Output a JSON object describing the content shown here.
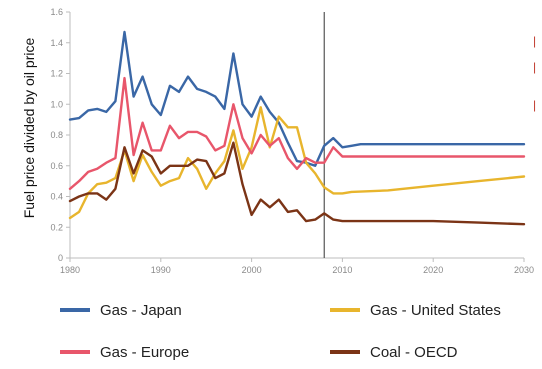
{
  "chart_data": {
    "type": "line",
    "title": "",
    "xlabel": "",
    "ylabel": "Fuel price divided by oil price",
    "xlim": [
      1980,
      2030
    ],
    "ylim": [
      0,
      1.6
    ],
    "x_ticks": [
      "1980",
      "1990",
      "2000",
      "2010",
      "2020",
      "2030"
    ],
    "y_ticks": [
      "0",
      "0.2",
      "0.4",
      "0.6",
      "0.8",
      "1.0",
      "1.2",
      "1.4",
      "1.6"
    ],
    "vertical_marker_x": 2008,
    "grid": false,
    "legend_position": "bottom",
    "series": [
      {
        "name": "Gas - Japan",
        "color": "#3a67a6",
        "points": [
          [
            1980,
            0.9
          ],
          [
            1981,
            0.91
          ],
          [
            1982,
            0.96
          ],
          [
            1983,
            0.97
          ],
          [
            1984,
            0.95
          ],
          [
            1985,
            1.02
          ],
          [
            1986,
            1.47
          ],
          [
            1987,
            1.05
          ],
          [
            1988,
            1.18
          ],
          [
            1989,
            1.0
          ],
          [
            1990,
            0.93
          ],
          [
            1991,
            1.12
          ],
          [
            1992,
            1.08
          ],
          [
            1993,
            1.18
          ],
          [
            1994,
            1.1
          ],
          [
            1995,
            1.08
          ],
          [
            1996,
            1.05
          ],
          [
            1997,
            0.97
          ],
          [
            1998,
            1.33
          ],
          [
            1999,
            1.0
          ],
          [
            2000,
            0.92
          ],
          [
            2001,
            1.05
          ],
          [
            2002,
            0.95
          ],
          [
            2003,
            0.88
          ],
          [
            2004,
            0.75
          ],
          [
            2005,
            0.63
          ],
          [
            2006,
            0.62
          ],
          [
            2007,
            0.6
          ],
          [
            2008,
            0.73
          ],
          [
            2009,
            0.78
          ],
          [
            2010,
            0.72
          ],
          [
            2011,
            0.73
          ],
          [
            2012,
            0.74
          ],
          [
            2015,
            0.74
          ],
          [
            2020,
            0.74
          ],
          [
            2025,
            0.74
          ],
          [
            2030,
            0.74
          ]
        ]
      },
      {
        "name": "Gas - United States",
        "color": "#e8b52d",
        "points": [
          [
            1980,
            0.26
          ],
          [
            1981,
            0.3
          ],
          [
            1982,
            0.42
          ],
          [
            1983,
            0.48
          ],
          [
            1984,
            0.49
          ],
          [
            1985,
            0.52
          ],
          [
            1986,
            0.7
          ],
          [
            1987,
            0.5
          ],
          [
            1988,
            0.67
          ],
          [
            1989,
            0.56
          ],
          [
            1990,
            0.47
          ],
          [
            1991,
            0.5
          ],
          [
            1992,
            0.52
          ],
          [
            1993,
            0.65
          ],
          [
            1994,
            0.58
          ],
          [
            1995,
            0.45
          ],
          [
            1996,
            0.55
          ],
          [
            1997,
            0.63
          ],
          [
            1998,
            0.83
          ],
          [
            1999,
            0.58
          ],
          [
            2000,
            0.72
          ],
          [
            2001,
            0.98
          ],
          [
            2002,
            0.72
          ],
          [
            2003,
            0.92
          ],
          [
            2004,
            0.85
          ],
          [
            2005,
            0.85
          ],
          [
            2006,
            0.62
          ],
          [
            2007,
            0.55
          ],
          [
            2008,
            0.46
          ],
          [
            2009,
            0.42
          ],
          [
            2010,
            0.42
          ],
          [
            2011,
            0.43
          ],
          [
            2015,
            0.44
          ],
          [
            2020,
            0.47
          ],
          [
            2025,
            0.5
          ],
          [
            2030,
            0.53
          ]
        ]
      },
      {
        "name": "Gas - Europe",
        "color": "#e8566b",
        "points": [
          [
            1980,
            0.45
          ],
          [
            1981,
            0.5
          ],
          [
            1982,
            0.56
          ],
          [
            1983,
            0.58
          ],
          [
            1984,
            0.62
          ],
          [
            1985,
            0.65
          ],
          [
            1986,
            1.17
          ],
          [
            1987,
            0.67
          ],
          [
            1988,
            0.88
          ],
          [
            1989,
            0.7
          ],
          [
            1990,
            0.7
          ],
          [
            1991,
            0.86
          ],
          [
            1992,
            0.78
          ],
          [
            1993,
            0.82
          ],
          [
            1994,
            0.82
          ],
          [
            1995,
            0.79
          ],
          [
            1996,
            0.7
          ],
          [
            1997,
            0.73
          ],
          [
            1998,
            1.0
          ],
          [
            1999,
            0.78
          ],
          [
            2000,
            0.68
          ],
          [
            2001,
            0.8
          ],
          [
            2002,
            0.73
          ],
          [
            2003,
            0.78
          ],
          [
            2004,
            0.65
          ],
          [
            2005,
            0.58
          ],
          [
            2006,
            0.65
          ],
          [
            2007,
            0.62
          ],
          [
            2008,
            0.62
          ],
          [
            2009,
            0.72
          ],
          [
            2010,
            0.66
          ],
          [
            2011,
            0.66
          ],
          [
            2012,
            0.66
          ],
          [
            2015,
            0.66
          ],
          [
            2020,
            0.66
          ],
          [
            2025,
            0.66
          ],
          [
            2030,
            0.66
          ]
        ]
      },
      {
        "name": "Coal - OECD",
        "color": "#7b3416",
        "points": [
          [
            1980,
            0.37
          ],
          [
            1981,
            0.4
          ],
          [
            1982,
            0.42
          ],
          [
            1983,
            0.42
          ],
          [
            1984,
            0.38
          ],
          [
            1985,
            0.45
          ],
          [
            1986,
            0.72
          ],
          [
            1987,
            0.55
          ],
          [
            1988,
            0.7
          ],
          [
            1989,
            0.66
          ],
          [
            1990,
            0.55
          ],
          [
            1991,
            0.6
          ],
          [
            1992,
            0.6
          ],
          [
            1993,
            0.6
          ],
          [
            1994,
            0.64
          ],
          [
            1995,
            0.63
          ],
          [
            1996,
            0.52
          ],
          [
            1997,
            0.55
          ],
          [
            1998,
            0.75
          ],
          [
            1999,
            0.48
          ],
          [
            2000,
            0.28
          ],
          [
            2001,
            0.38
          ],
          [
            2002,
            0.33
          ],
          [
            2003,
            0.38
          ],
          [
            2004,
            0.3
          ],
          [
            2005,
            0.31
          ],
          [
            2006,
            0.24
          ],
          [
            2007,
            0.25
          ],
          [
            2008,
            0.29
          ],
          [
            2009,
            0.25
          ],
          [
            2010,
            0.24
          ],
          [
            2015,
            0.24
          ],
          [
            2020,
            0.24
          ],
          [
            2025,
            0.23
          ],
          [
            2030,
            0.22
          ]
        ]
      }
    ]
  },
  "legend": {
    "items": [
      {
        "label": "Gas - Japan",
        "color": "#3a67a6"
      },
      {
        "label": "Gas - United States",
        "color": "#e8b52d"
      },
      {
        "label": "Gas - Europe",
        "color": "#e8566b"
      },
      {
        "label": "Coal - OECD",
        "color": "#7b3416"
      }
    ]
  }
}
